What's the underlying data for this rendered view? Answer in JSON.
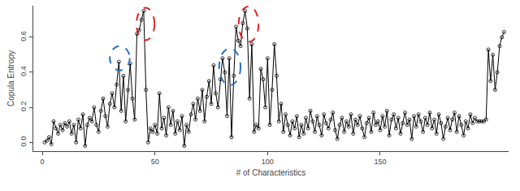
{
  "chart_data": {
    "type": "line",
    "x_label": "# of Characteristics",
    "y_label": "Copula Entropy",
    "x": [
      1,
      2,
      3,
      4,
      5,
      6,
      7,
      8,
      9,
      10,
      11,
      12,
      13,
      14,
      15,
      16,
      17,
      18,
      19,
      20,
      21,
      22,
      23,
      24,
      25,
      26,
      27,
      28,
      29,
      30,
      31,
      32,
      33,
      34,
      35,
      36,
      37,
      38,
      39,
      40,
      41,
      42,
      43,
      44,
      45,
      46,
      47,
      48,
      49,
      50,
      51,
      52,
      53,
      54,
      55,
      56,
      57,
      58,
      59,
      60,
      61,
      62,
      63,
      64,
      65,
      66,
      67,
      68,
      69,
      70,
      71,
      72,
      73,
      74,
      75,
      76,
      77,
      78,
      79,
      80,
      81,
      82,
      83,
      84,
      85,
      86,
      87,
      88,
      89,
      90,
      91,
      92,
      93,
      94,
      95,
      96,
      97,
      98,
      99,
      100,
      101,
      102,
      103,
      104,
      105,
      106,
      107,
      108,
      109,
      110,
      111,
      112,
      113,
      114,
      115,
      116,
      117,
      118,
      119,
      120,
      121,
      122,
      123,
      124,
      125,
      126,
      127,
      128,
      129,
      130,
      131,
      132,
      133,
      134,
      135,
      136,
      137,
      138,
      139,
      140,
      141,
      142,
      143,
      144,
      145,
      146,
      147,
      148,
      149,
      150,
      151,
      152,
      153,
      154,
      155,
      156,
      157,
      158,
      159,
      160,
      161,
      162,
      163,
      164,
      165,
      166,
      167,
      168,
      169,
      170,
      171,
      172,
      173,
      174,
      175,
      176,
      177,
      178,
      179,
      180,
      181,
      182,
      183,
      184,
      185,
      186,
      187,
      188,
      189,
      190,
      191,
      192,
      193,
      194,
      195,
      196,
      197,
      198,
      199,
      200,
      201,
      202,
      203,
      204,
      205
    ],
    "values": [
      0.0,
      0.01,
      0.03,
      -0.01,
      0.12,
      0.08,
      0.05,
      0.1,
      0.07,
      0.11,
      0.09,
      0.12,
      0.05,
      0.1,
      0.0,
      0.13,
      0.08,
      0.16,
      -0.02,
      0.1,
      0.14,
      0.12,
      0.2,
      0.1,
      0.06,
      0.18,
      0.25,
      0.15,
      0.09,
      0.22,
      0.28,
      0.2,
      0.33,
      0.46,
      0.18,
      0.38,
      0.12,
      0.3,
      0.45,
      0.25,
      0.13,
      0.62,
      0.64,
      0.7,
      0.75,
      0.3,
      0.0,
      0.08,
      0.06,
      0.1,
      0.05,
      0.28,
      0.08,
      0.14,
      0.04,
      0.2,
      0.1,
      0.18,
      0.05,
      0.12,
      0.07,
      0.15,
      -0.02,
      0.1,
      0.06,
      0.16,
      0.22,
      0.13,
      0.25,
      0.18,
      0.3,
      0.12,
      0.26,
      0.35,
      0.22,
      0.44,
      0.28,
      0.2,
      0.36,
      0.48,
      0.4,
      0.15,
      0.48,
      0.03,
      0.38,
      0.66,
      0.58,
      0.55,
      0.68,
      0.75,
      0.65,
      0.25,
      0.56,
      0.06,
      0.1,
      0.08,
      0.42,
      0.36,
      0.2,
      0.48,
      0.1,
      0.3,
      0.56,
      0.38,
      0.12,
      0.22,
      0.06,
      0.16,
      0.1,
      0.04,
      0.12,
      0.08,
      0.15,
      0.03,
      0.1,
      0.05,
      0.14,
      0.08,
      0.18,
      0.12,
      0.06,
      0.15,
      0.1,
      0.04,
      0.16,
      0.11,
      0.08,
      0.13,
      0.17,
      0.07,
      0.02,
      0.1,
      0.14,
      0.06,
      0.12,
      0.09,
      0.16,
      0.05,
      0.13,
      0.1,
      0.15,
      0.08,
      0.03,
      0.11,
      0.14,
      0.06,
      0.17,
      0.1,
      0.12,
      0.07,
      0.15,
      0.09,
      0.18,
      0.04,
      0.13,
      0.16,
      0.08,
      0.14,
      0.05,
      0.11,
      0.17,
      0.1,
      0.13,
      0.02,
      0.15,
      0.09,
      0.16,
      0.12,
      0.06,
      0.14,
      0.1,
      0.17,
      0.08,
      0.13,
      0.05,
      0.16,
      0.11,
      0.02,
      0.09,
      0.14,
      0.07,
      0.13,
      0.17,
      0.06,
      0.15,
      0.1,
      0.04,
      0.12,
      0.08,
      0.16,
      0.11,
      0.14,
      0.12,
      0.12,
      0.12,
      0.12,
      0.13,
      0.53,
      0.35,
      0.5,
      0.3,
      0.4,
      0.55,
      0.6,
      0.63
    ],
    "color": "#000000",
    "marker": "circle-open",
    "line_style": "solid",
    "xlim": [
      -4,
      207
    ],
    "xticks": [
      0,
      50,
      100,
      150
    ],
    "ylim": [
      -0.05,
      0.78
    ],
    "yticks": [
      {
        "value": 0,
        "label": "0.0"
      },
      0.2,
      0.4,
      0.6
    ],
    "grid": false
  }
}
